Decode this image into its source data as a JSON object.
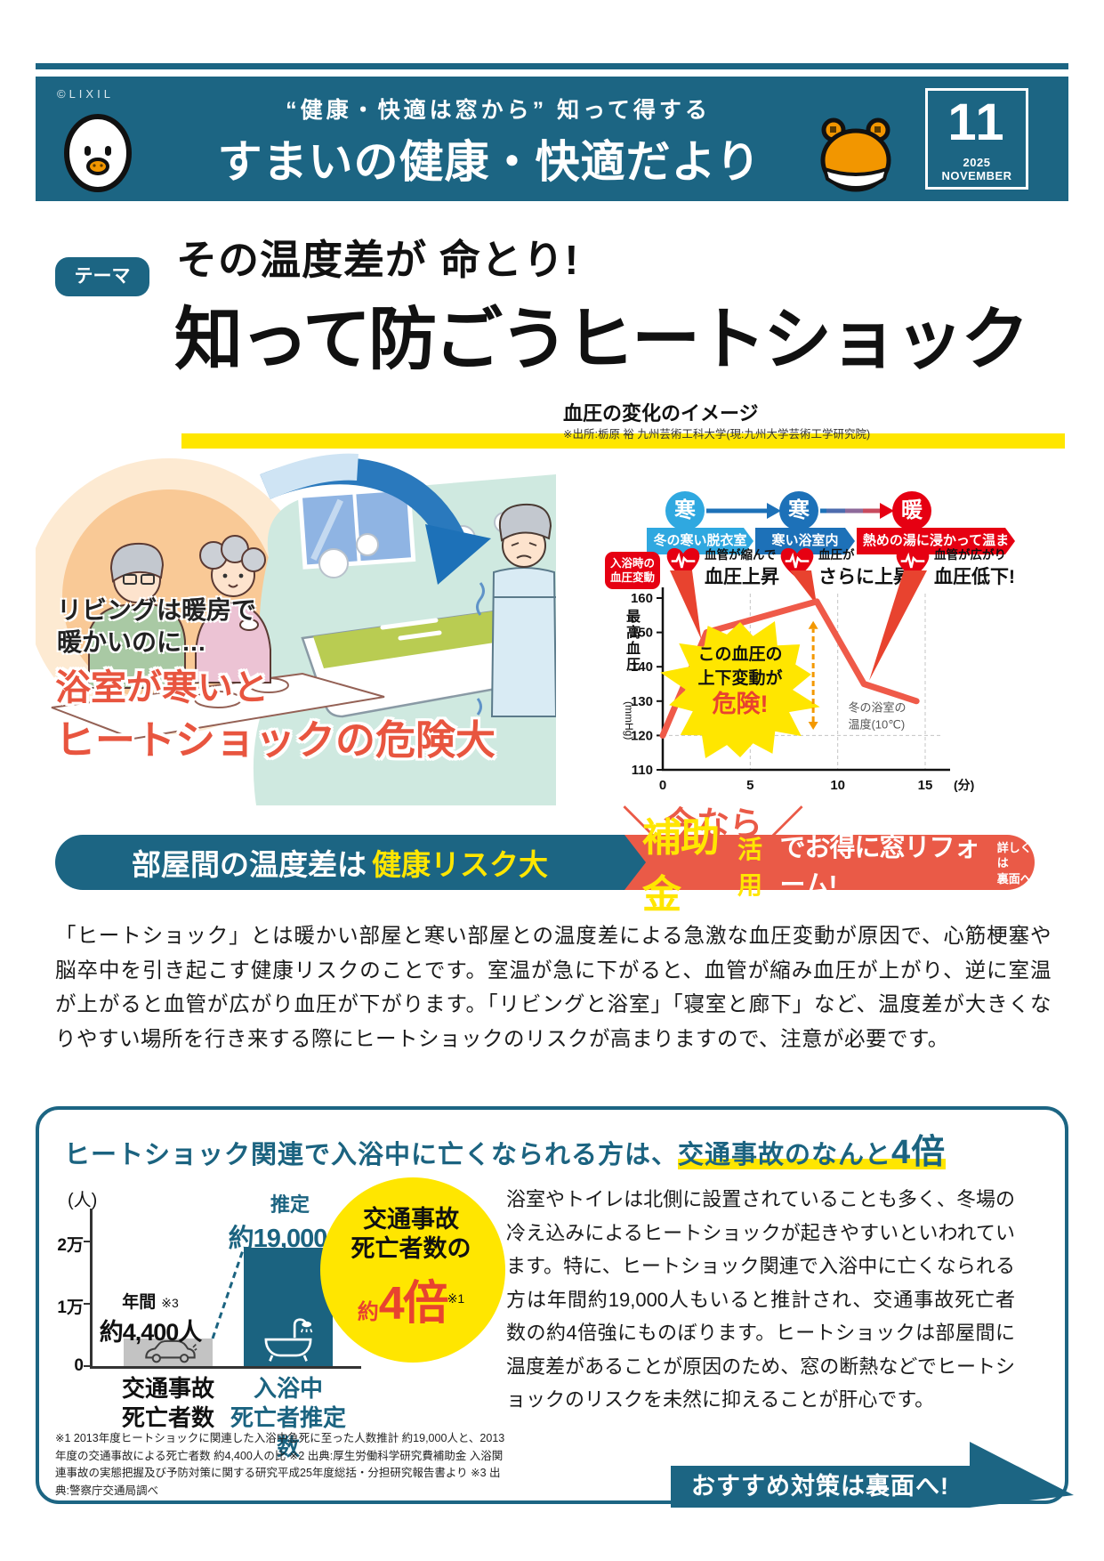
{
  "meta": {
    "copyright": "©LIXIL",
    "issue_number": "11",
    "issue_date": "2025 NOVEMBER"
  },
  "colors": {
    "teal": "#1c6583",
    "banner_red": "#ea5a47",
    "accent_red": "#e8432f",
    "yellow": "#ffe600",
    "stage_cold1": "#2fa8e0",
    "stage_cold2": "#1d71b8",
    "stage_warm": "#e60012",
    "line_red": "#ef5a49",
    "bar_gray": "#c3c3c3",
    "bar_teal": "#1b6380"
  },
  "header": {
    "tagline": "“健康・快適は窓から” 知って得する",
    "title": "すまいの健康・快適だより"
  },
  "theme": {
    "badge": "テーマ",
    "subtitle": "その温度差が 命とり!",
    "title": "知って防ごうヒートショック"
  },
  "scene": {
    "caption_warm": "リビングは暖房で\n暖かいのに…",
    "caption_cold_1": "浴室が寒いと",
    "caption_cold_2": "ヒートショックの危険大"
  },
  "bp_diagram": {
    "title": "血圧の変化のイメージ",
    "source": "※出所:栃原 裕 九州芸術工科大学(現:九州大学芸術工学研究院)",
    "stages": [
      {
        "circle": "寒",
        "label": "冬の寒い脱衣室"
      },
      {
        "circle": "寒",
        "label": "寒い浴室内"
      },
      {
        "circle": "暖",
        "label": "熱めの湯に浸かって温まる"
      }
    ],
    "badge": "入浴時の\n血圧変動",
    "effects": [
      {
        "line1": "血管が縮んで",
        "line2": "血圧上昇"
      },
      {
        "line1": "血圧が",
        "line2": "さらに上昇!"
      },
      {
        "line1": "血管が広がり",
        "line2": "血圧低下!"
      }
    ],
    "burst_line1": "この血圧の",
    "burst_line2": "上下変動が",
    "burst_line3": "危険!",
    "note": "冬の浴室の\n温度(10℃)",
    "y_axis_label": "最高血圧",
    "y_axis_unit": "(mmHg)"
  },
  "chart_data": [
    {
      "type": "line",
      "title": "血圧の変化のイメージ",
      "xlabel": "(分)",
      "ylabel": "最高血圧(mmHg)",
      "xlim": [
        0,
        15
      ],
      "ylim": [
        110,
        160
      ],
      "xticks": [
        0,
        5,
        10,
        15
      ],
      "yticks": [
        110,
        120,
        130,
        140,
        150,
        160
      ],
      "x": [
        0,
        2.5,
        8.8,
        11.5,
        14.5
      ],
      "y": [
        120,
        150,
        159,
        135,
        130
      ],
      "grid": "dashed guide at y=120 and x=5,10,15",
      "annotations": [
        "この血圧の上下変動が危険!",
        "冬の浴室の温度(10℃)",
        "入浴時の血圧変動"
      ]
    },
    {
      "type": "bar",
      "categories": [
        "交通事故死亡者数",
        "入浴中死亡者推定数"
      ],
      "values": [
        4400,
        19000
      ],
      "value_labels": [
        "年間 約4,400人 ※3",
        "推定 約19,000人 ※2"
      ],
      "ylabel": "(人)",
      "ylim": [
        0,
        24000
      ],
      "yticks": [
        {
          "label": "2万",
          "value": 20000
        },
        {
          "label": "1万",
          "value": 10000
        },
        {
          "label": "0",
          "value": 0
        }
      ],
      "annotation": "交通事故死亡者数の約4倍 ※1",
      "bar_colors": [
        "#c3c3c3",
        "#1b6380"
      ]
    }
  ],
  "promo": {
    "now_decor_left": "＼",
    "now": "今なら",
    "now_decor_right": "／",
    "left_text": "部屋間の温度差は",
    "left_highlight": "健康リスク大",
    "subsidy": "補助金",
    "subsidy_use": "活用",
    "right_text": "でお得に窓リフォーム!",
    "more": "詳しくは\n裏面へ"
  },
  "intro": "「ヒートショック」とは暖かい部屋と寒い部屋との温度差による急激な血圧変動が原因で、心筋梗塞や脳卒中を引き起こす健康リスクのことです。室温が急に下がると、血管が縮み血圧が上がり、逆に室温が上がると血管が広がり血圧が下がります。「リビングと浴室」「寝室と廊下」など、温度差が大きくなりやすい場所を行き来する際にヒートショックのリスクが高まりますので、注意が必要です。",
  "stats": {
    "heading_plain": "ヒートショック関連で入浴中に亡くなられる方は、",
    "heading_highlight": "交通事故のなんと",
    "heading_big": "4倍",
    "bars": {
      "unit": "(人)",
      "left_top1": "年間",
      "left_ref": "※3",
      "left_top2": "約4,400人",
      "left_caption": "交通事故\n死亡者数",
      "right_top1": "推定",
      "right_top2": "約19,000人",
      "right_ref": "※2",
      "right_caption": "入浴中\n死亡者推定数"
    },
    "bubble": {
      "line1": "交通事故",
      "line2": "死亡者数の",
      "approx": "約",
      "big": "4倍",
      "ref": "※1"
    },
    "body": "浴室やトイレは北側に設置されていることも多く、冬場の冷え込みによるヒートショックが起きやすいといわれています。特に、ヒートショック関連で入浴中に亡くなられる方は年間約19,000人もいると推計され、交通事故死亡者数の約4倍強にものぼります。ヒートショックは部屋間に温度差があることが原因のため、窓の断熱などでヒートショックのリスクを未然に抑えることが肝心です。",
    "footnote": "※1 2013年度ヒートショックに関連した入浴中急死に至った人数推計 約19,000人と、2013年度の交通事故による死亡者数 約4,400人の比 ※2 出典:厚生労働科学研究費補助金 入浴関連事故の実態把握及び予防対策に関する研究平成25年度総括・分担研究報告書より ※3 出典:警察庁交通局調べ",
    "cta": "おすすめ対策は裏面へ!"
  }
}
